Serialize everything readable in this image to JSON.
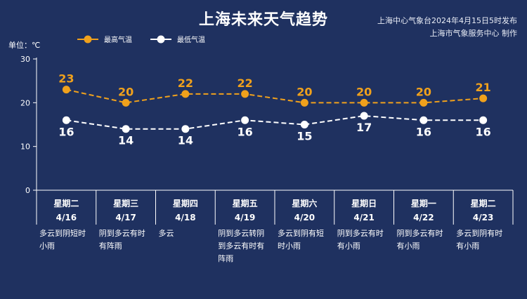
{
  "title": "上海未来天气趋势",
  "source_lines": [
    "上海中心气象台2024年4月15日5时发布",
    "上海市气象服务中心 制作"
  ],
  "colors": {
    "background": "#1f3160",
    "high": "#f0a11c",
    "low": "#ffffff",
    "axis": "#ffffff"
  },
  "chart_data": {
    "type": "line",
    "title": "上海未来天气趋势",
    "ylabel": "单位：℃",
    "ylim": [
      0,
      30
    ],
    "yticks": [
      0,
      10,
      20,
      30
    ],
    "legend_position": "top-left",
    "categories": [
      {
        "weekday": "星期二",
        "date": "4/16",
        "weather": "多云到阴短时小雨"
      },
      {
        "weekday": "星期三",
        "date": "4/17",
        "weather": "阴到多云有时有阵雨"
      },
      {
        "weekday": "星期四",
        "date": "4/18",
        "weather": "多云"
      },
      {
        "weekday": "星期五",
        "date": "4/19",
        "weather": "阴到多云转阴到多云有时有阵雨"
      },
      {
        "weekday": "星期六",
        "date": "4/20",
        "weather": "多云到阴有短时小雨"
      },
      {
        "weekday": "星期日",
        "date": "4/21",
        "weather": "阴到多云有时有小雨"
      },
      {
        "weekday": "星期一",
        "date": "4/22",
        "weather": "阴到多云有时有小雨"
      },
      {
        "weekday": "星期二",
        "date": "4/23",
        "weather": "多云到阴有时有小雨"
      }
    ],
    "series": [
      {
        "name": "最高气温",
        "values": [
          23,
          20,
          22,
          22,
          20,
          20,
          20,
          21
        ]
      },
      {
        "name": "最低气温",
        "values": [
          16,
          14,
          14,
          16,
          15,
          17,
          16,
          16
        ]
      }
    ]
  }
}
